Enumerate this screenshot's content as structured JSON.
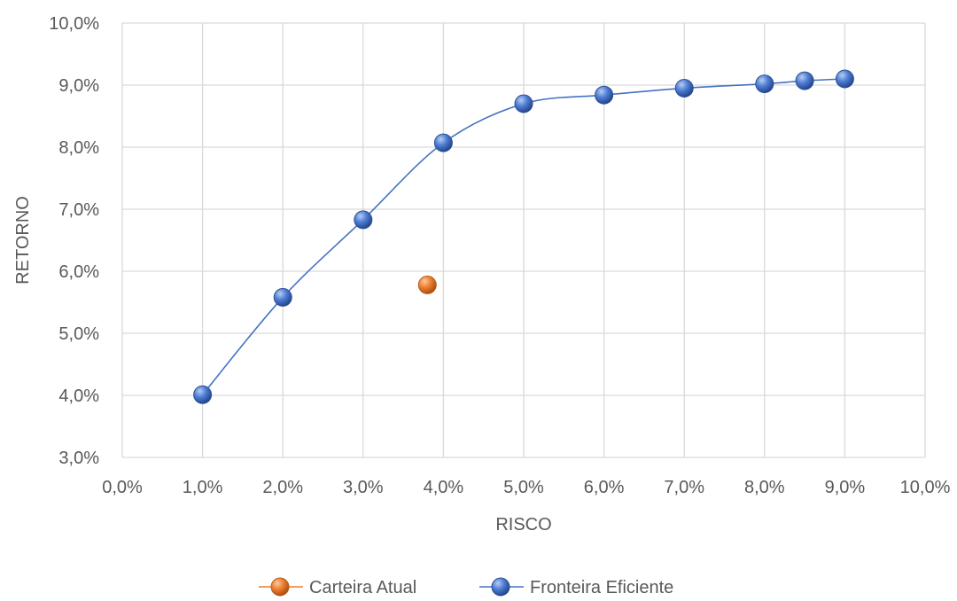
{
  "chart_data": {
    "type": "scatter",
    "title": "",
    "xlabel": "RISCO",
    "ylabel": "RETORNO",
    "xlim": [
      0.0,
      10.0
    ],
    "ylim": [
      3.0,
      10.0
    ],
    "x_ticks": [
      "0,0%",
      "1,0%",
      "2,0%",
      "3,0%",
      "4,0%",
      "5,0%",
      "6,0%",
      "7,0%",
      "8,0%",
      "9,0%",
      "10,0%"
    ],
    "y_ticks": [
      "3,0%",
      "4,0%",
      "5,0%",
      "6,0%",
      "7,0%",
      "8,0%",
      "9,0%",
      "10,0%"
    ],
    "grid": true,
    "legend_position": "bottom",
    "series": [
      {
        "name": "Carteira Atual",
        "color": "#ed7d31",
        "x": [
          3.8
        ],
        "y": [
          5.78
        ]
      },
      {
        "name": "Fronteira Eficiente",
        "color": "#4472c4",
        "smooth_line": true,
        "x": [
          1.0,
          2.0,
          3.0,
          4.0,
          5.0,
          6.0,
          7.0,
          8.0,
          8.5,
          9.0
        ],
        "y": [
          4.01,
          5.58,
          6.83,
          8.07,
          8.7,
          8.84,
          8.95,
          9.02,
          9.07,
          9.1
        ]
      }
    ]
  }
}
